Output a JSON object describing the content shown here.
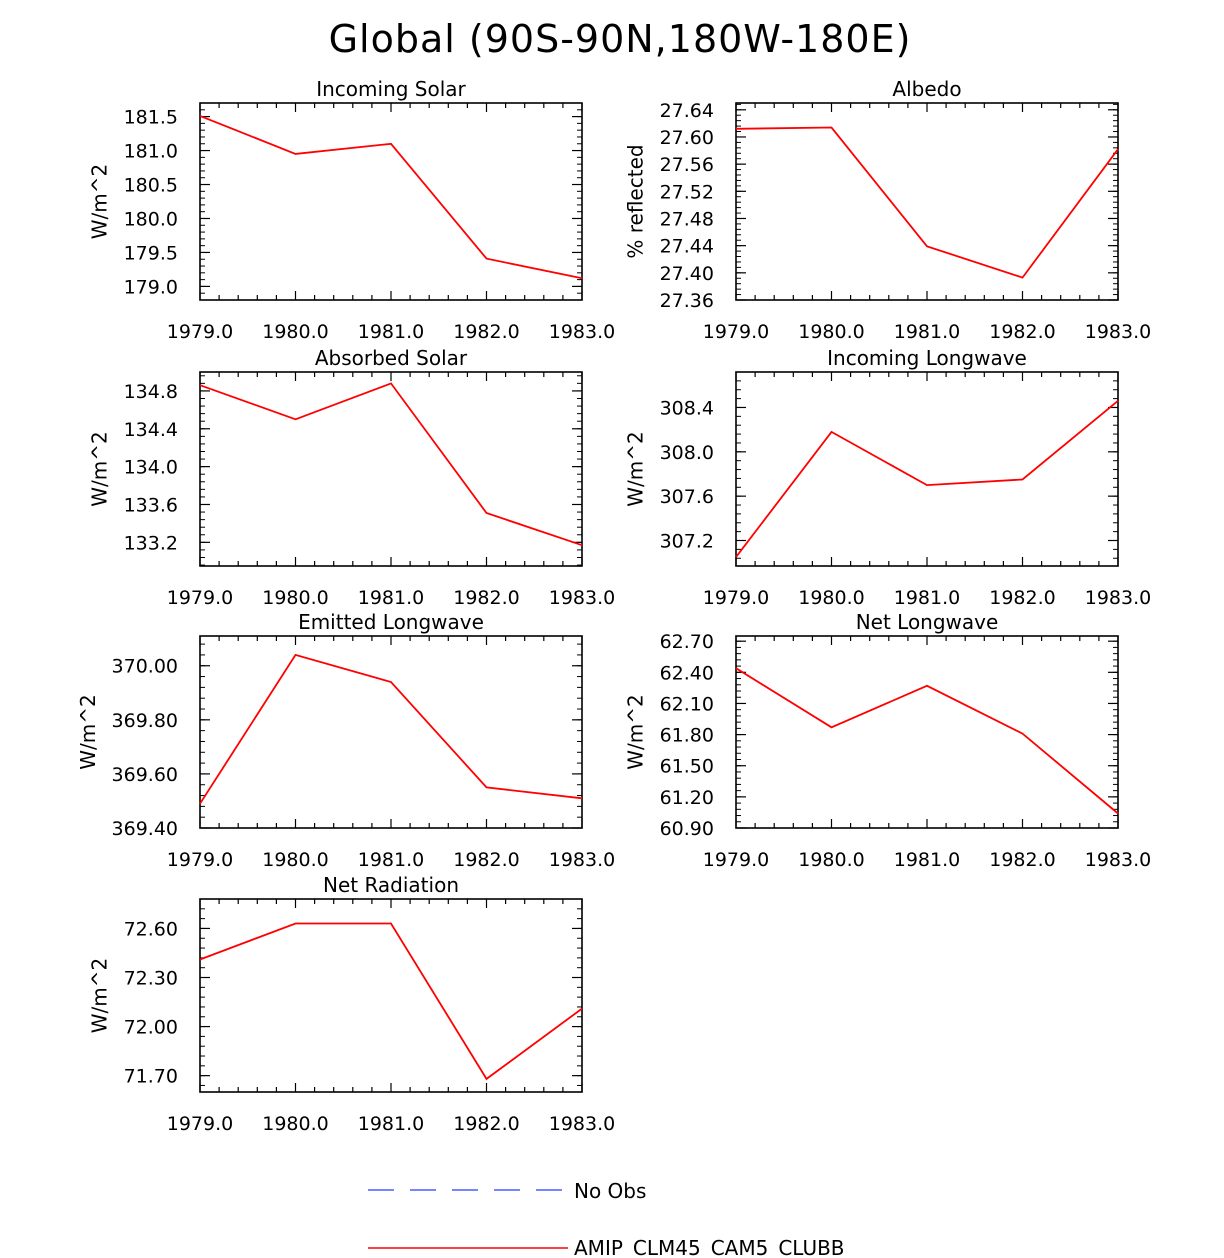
{
  "page_title": "Global (90S-90N,180W-180E)",
  "legend": {
    "entries": [
      {
        "label": "No Obs",
        "color": "#4a5cff",
        "style": "dashed"
      },
      {
        "label": "AMIP_CLM45_CAM5_CLUBB",
        "color": "#ff0000",
        "style": "solid"
      }
    ]
  },
  "chart_data": [
    {
      "type": "line",
      "title": "Incoming Solar",
      "ylabel": "W/m^2",
      "x": [
        1979,
        1980,
        1981,
        1982,
        1983
      ],
      "series": [
        {
          "name": "AMIP_CLM45_CAM5_CLUBB",
          "color": "#ff0000",
          "values": [
            181.51,
            180.95,
            181.1,
            179.41,
            179.12
          ]
        }
      ],
      "ylim": [
        178.8,
        181.7
      ],
      "yticks": [
        179.0,
        179.5,
        180.0,
        180.5,
        181.0,
        181.5
      ],
      "ytick_labels": [
        "179.0",
        "179.5",
        "180.0",
        "180.5",
        "181.0",
        "181.5"
      ],
      "xtick_labels": [
        "1979.0",
        "1980.0",
        "1981.0",
        "1982.0",
        "1983.0"
      ]
    },
    {
      "type": "line",
      "title": "Albedo",
      "ylabel": "% reflected",
      "x": [
        1979,
        1980,
        1981,
        1982,
        1983
      ],
      "series": [
        {
          "name": "AMIP_CLM45_CAM5_CLUBB",
          "color": "#ff0000",
          "values": [
            27.612,
            27.614,
            27.439,
            27.393,
            27.582
          ]
        }
      ],
      "ylim": [
        27.36,
        27.65
      ],
      "yticks": [
        27.36,
        27.4,
        27.44,
        27.48,
        27.52,
        27.56,
        27.6,
        27.64
      ],
      "ytick_labels": [
        "27.36",
        "27.40",
        "27.44",
        "27.48",
        "27.52",
        "27.56",
        "27.60",
        "27.64"
      ],
      "xtick_labels": [
        "1979.0",
        "1980.0",
        "1981.0",
        "1982.0",
        "1983.0"
      ]
    },
    {
      "type": "line",
      "title": "Absorbed Solar",
      "ylabel": "W/m^2",
      "x": [
        1979,
        1980,
        1981,
        1982,
        1983
      ],
      "series": [
        {
          "name": "AMIP_CLM45_CAM5_CLUBB",
          "color": "#ff0000",
          "values": [
            134.86,
            134.5,
            134.88,
            133.51,
            133.17
          ]
        }
      ],
      "ylim": [
        132.95,
        135.0
      ],
      "yticks": [
        133.2,
        133.6,
        134.0,
        134.4,
        134.8
      ],
      "ytick_labels": [
        "133.2",
        "133.6",
        "134.0",
        "134.4",
        "134.8"
      ],
      "xtick_labels": [
        "1979.0",
        "1980.0",
        "1981.0",
        "1982.0",
        "1983.0"
      ]
    },
    {
      "type": "line",
      "title": "Incoming Longwave",
      "ylabel": "W/m^2",
      "x": [
        1979,
        1980,
        1981,
        1982,
        1983
      ],
      "series": [
        {
          "name": "AMIP_CLM45_CAM5_CLUBB",
          "color": "#ff0000",
          "values": [
            307.05,
            308.18,
            307.7,
            307.75,
            308.46
          ]
        }
      ],
      "ylim": [
        306.97,
        308.72
      ],
      "yticks": [
        307.2,
        307.6,
        308.0,
        308.4
      ],
      "ytick_labels": [
        "307.2",
        "307.6",
        "308.0",
        "308.4"
      ],
      "xtick_labels": [
        "1979.0",
        "1980.0",
        "1981.0",
        "1982.0",
        "1983.0"
      ]
    },
    {
      "type": "line",
      "title": "Emitted Longwave",
      "ylabel": "W/m^2",
      "x": [
        1979,
        1980,
        1981,
        1982,
        1983
      ],
      "series": [
        {
          "name": "AMIP_CLM45_CAM5_CLUBB",
          "color": "#ff0000",
          "values": [
            369.49,
            370.04,
            369.94,
            369.55,
            369.51
          ]
        }
      ],
      "ylim": [
        369.4,
        370.11
      ],
      "yticks": [
        369.4,
        369.6,
        369.8,
        370.0
      ],
      "ytick_labels": [
        "369.40",
        "369.60",
        "369.80",
        "370.00"
      ],
      "xtick_labels": [
        "1979.0",
        "1980.0",
        "1981.0",
        "1982.0",
        "1983.0"
      ]
    },
    {
      "type": "line",
      "title": "Net Longwave",
      "ylabel": "W/m^2",
      "x": [
        1979,
        1980,
        1981,
        1982,
        1983
      ],
      "series": [
        {
          "name": "AMIP_CLM45_CAM5_CLUBB",
          "color": "#ff0000",
          "values": [
            62.44,
            61.87,
            62.27,
            61.81,
            61.04
          ]
        }
      ],
      "ylim": [
        60.9,
        62.75
      ],
      "yticks": [
        60.9,
        61.2,
        61.5,
        61.8,
        62.1,
        62.4,
        62.7
      ],
      "ytick_labels": [
        "60.90",
        "61.20",
        "61.50",
        "61.80",
        "62.10",
        "62.40",
        "62.70"
      ],
      "xtick_labels": [
        "1979.0",
        "1980.0",
        "1981.0",
        "1982.0",
        "1983.0"
      ]
    },
    {
      "type": "line",
      "title": "Net Radiation",
      "ylabel": "W/m^2",
      "x": [
        1979,
        1980,
        1981,
        1982,
        1983
      ],
      "series": [
        {
          "name": "AMIP_CLM45_CAM5_CLUBB",
          "color": "#ff0000",
          "values": [
            72.41,
            72.63,
            72.63,
            71.68,
            72.11
          ]
        }
      ],
      "ylim": [
        71.6,
        72.78
      ],
      "yticks": [
        71.7,
        72.0,
        72.3,
        72.6
      ],
      "ytick_labels": [
        "71.70",
        "72.00",
        "72.30",
        "72.60"
      ],
      "xtick_labels": [
        "1979.0",
        "1980.0",
        "1981.0",
        "1982.0",
        "1983.0"
      ]
    }
  ]
}
